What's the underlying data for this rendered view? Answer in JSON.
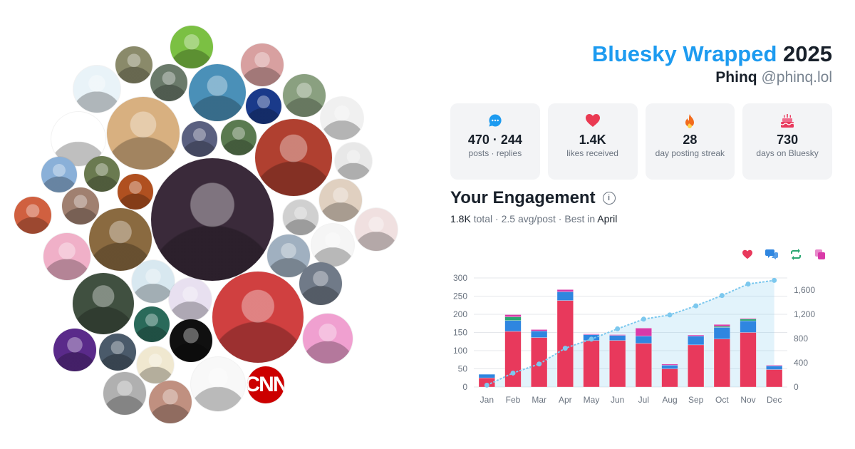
{
  "header": {
    "app_name": "Bluesky Wrapped",
    "year": "2025",
    "display_name": "Phinq",
    "handle": "@phinq.lol"
  },
  "stats": [
    {
      "icon": "speech-bubble-icon",
      "value": "470 · 244",
      "label": "posts · replies"
    },
    {
      "icon": "heart-icon",
      "value": "1.4K",
      "label": "likes received"
    },
    {
      "icon": "flame-icon",
      "value": "28",
      "label": "day posting streak"
    },
    {
      "icon": "cake-icon",
      "value": "730",
      "label": "days on Bluesky"
    }
  ],
  "engagement": {
    "title": "Your Engagement",
    "total": "1.8K",
    "total_label": "total",
    "avg": "2.5 avg/post",
    "best_label": "Best in",
    "best_month": "April"
  },
  "legend": [
    {
      "icon": "heart-icon",
      "color": "#e8395c"
    },
    {
      "icon": "reply-icon",
      "color": "#2f86e0"
    },
    {
      "icon": "repost-icon",
      "color": "#2aa772"
    },
    {
      "icon": "quote-icon",
      "color": "#d93aa8"
    }
  ],
  "avatars": [
    {
      "name": "avatar-cyanide-happiness",
      "color": "#e9f3f8"
    },
    {
      "name": "avatar-outdoor-group",
      "color": "#8a8a6a"
    },
    {
      "name": "avatar-green-creature",
      "color": "#7bc043"
    },
    {
      "name": "avatar-man-glasses-plaid",
      "color": "#6a7a6a"
    },
    {
      "name": "avatar-woman-flower-crown",
      "color": "#d8a0a0"
    },
    {
      "name": "avatar-man-glasses-blue",
      "color": "#4a90b8"
    },
    {
      "name": "avatar-warcraft-logo",
      "color": "#1a3a8a"
    },
    {
      "name": "avatar-woman-glasses-tongue",
      "color": "#8aa080"
    },
    {
      "name": "avatar-cpsc-seal",
      "color": "#ffffff"
    },
    {
      "name": "avatar-anime-blonde",
      "color": "#d8b080"
    },
    {
      "name": "avatar-man-suit",
      "color": "#5a6080"
    },
    {
      "name": "avatar-trees",
      "color": "#5a7a50"
    },
    {
      "name": "avatar-santa-hat-woman",
      "color": "#b04030"
    },
    {
      "name": "avatar-sketch-face",
      "color": "#f0f0f0"
    },
    {
      "name": "avatar-grumpy-face-badge",
      "color": "#e8e8e8"
    },
    {
      "name": "avatar-cartoon-blue-hair",
      "color": "#8ab0d8"
    },
    {
      "name": "avatar-hat-glasses",
      "color": "#6a7a50"
    },
    {
      "name": "avatar-orange-portrait",
      "color": "#b05020"
    },
    {
      "name": "avatar-godzilla-nebula",
      "color": "#3a2a3a"
    },
    {
      "name": "avatar-cat-face",
      "color": "#e0d0c0"
    },
    {
      "name": "avatar-sketch-hair",
      "color": "#d0d0d0"
    },
    {
      "name": "avatar-dark-hair-woman",
      "color": "#a08070"
    },
    {
      "name": "avatar-vintage-radio",
      "color": "#8a6a40"
    },
    {
      "name": "avatar-glasses-man-2",
      "color": "#a0b0c0"
    },
    {
      "name": "avatar-i-am-canadian",
      "color": "#f5f5f5"
    },
    {
      "name": "avatar-vampire-anime",
      "color": "#f0e0e0"
    },
    {
      "name": "avatar-pink-hair-anime",
      "color": "#f0b0c8"
    },
    {
      "name": "avatar-mouse-cartoon",
      "color": "#d8e8f0"
    },
    {
      "name": "avatar-green-blob",
      "color": "#8ad040"
    },
    {
      "name": "avatar-curly-man",
      "color": "#405040"
    },
    {
      "name": "avatar-brown-hair-anime",
      "color": "#e8e0f0"
    },
    {
      "name": "avatar-bearded-man",
      "color": "#d04040"
    },
    {
      "name": "avatar-snow-bird",
      "color": "#707a88"
    },
    {
      "name": "avatar-princess-bubblegum",
      "color": "#f0a0d0"
    },
    {
      "name": "avatar-zombie-cartoon",
      "color": "#2a6a5a"
    },
    {
      "name": "avatar-tv-cartoon",
      "color": "#101010"
    },
    {
      "name": "avatar-purple-hair",
      "color": "#5a2a8a"
    },
    {
      "name": "avatar-smiling-man",
      "color": "#4a5a6a"
    },
    {
      "name": "avatar-flower-crown-cartoon",
      "color": "#f0e8d0"
    },
    {
      "name": "avatar-line-art-man",
      "color": "#f8f8f8"
    },
    {
      "name": "avatar-cnn-logo",
      "color": "#cc0000",
      "text": "CNN"
    },
    {
      "name": "avatar-grayscale-man",
      "color": "#b0b0b0"
    },
    {
      "name": "avatar-woman-selfie",
      "color": "#c09080"
    },
    {
      "name": "avatar-red-cartoon",
      "color": "#d06040"
    }
  ],
  "chart_data": {
    "type": "bar",
    "categories": [
      "Jan",
      "Feb",
      "Mar",
      "Apr",
      "May",
      "Jun",
      "Jul",
      "Aug",
      "Sep",
      "Oct",
      "Nov",
      "Dec"
    ],
    "series": [
      {
        "name": "likes",
        "color": "#e8395c",
        "values": [
          25,
          153,
          136,
          238,
          128,
          128,
          120,
          50,
          116,
          132,
          150,
          48
        ]
      },
      {
        "name": "replies",
        "color": "#2f86e0",
        "values": [
          10,
          30,
          18,
          24,
          16,
          14,
          20,
          10,
          24,
          32,
          32,
          10
        ]
      },
      {
        "name": "reposts",
        "color": "#2aa772",
        "values": [
          0,
          10,
          0,
          0,
          0,
          0,
          0,
          0,
          0,
          3,
          5,
          0
        ]
      },
      {
        "name": "quotes",
        "color": "#d93aa8",
        "values": [
          0,
          6,
          4,
          6,
          2,
          2,
          22,
          3,
          3,
          5,
          2,
          2
        ]
      }
    ],
    "cumulative": {
      "color": "#7cc8ee",
      "values": [
        30,
        230,
        380,
        640,
        790,
        960,
        1120,
        1190,
        1340,
        1510,
        1700,
        1760
      ]
    },
    "y_left": {
      "min": 0,
      "max": 300,
      "ticks": [
        0,
        50,
        100,
        150,
        200,
        250,
        300
      ]
    },
    "y_right": {
      "min": 0,
      "max": 1800,
      "ticks": [
        "0",
        "400",
        "800",
        "1,200",
        "1,600"
      ],
      "tick_values": [
        0,
        400,
        800,
        1200,
        1600
      ]
    },
    "grid": true
  }
}
